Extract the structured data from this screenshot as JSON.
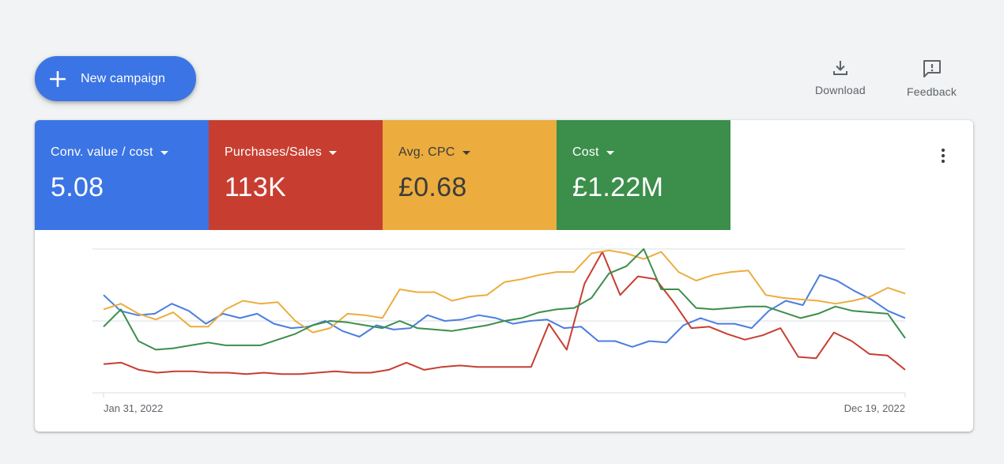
{
  "toolbar": {
    "new_campaign_label": "New campaign",
    "download_label": "Download",
    "feedback_label": "Feedback"
  },
  "metrics": [
    {
      "label": "Conv. value / cost",
      "value": "5.08",
      "color": "#3b74e4"
    },
    {
      "label": "Purchases/Sales",
      "value": "113K",
      "color": "#c73e31"
    },
    {
      "label": "Avg. CPC",
      "value": "£0.68",
      "color": "#ecad3e"
    },
    {
      "label": "Cost",
      "value": "£1.22M",
      "color": "#3c8e4b"
    }
  ],
  "icons": {
    "new_campaign": "plus-icon",
    "download": "download-icon",
    "feedback": "feedback-icon",
    "menu": "more-vert-icon"
  },
  "chart_data": {
    "type": "line",
    "x_start": "Jan 31, 2022",
    "x_end": "Dec 19, 2022",
    "x_tick_labels": [
      "Jan 31, 2022",
      "Dec 19, 2022"
    ],
    "grid": true,
    "series": [
      {
        "name": "Conv. value / cost",
        "color": "#4a7ee0",
        "values": [
          68,
          57,
          54,
          55,
          62,
          57,
          48,
          55,
          52,
          55,
          48,
          45,
          46,
          50,
          43,
          39,
          47,
          44,
          45,
          54,
          50,
          51,
          54,
          52,
          48,
          50,
          51,
          45,
          46,
          36,
          36,
          32,
          36,
          35,
          47,
          52,
          48,
          48,
          45,
          57,
          64,
          61,
          82,
          78,
          71,
          65,
          57,
          52
        ]
      },
      {
        "name": "Purchases/Sales",
        "color": "#c73e31",
        "values": [
          20,
          21,
          16,
          14,
          15,
          15,
          14,
          14,
          13,
          14,
          13,
          13,
          14,
          15,
          14,
          14,
          16,
          21,
          16,
          18,
          19,
          18,
          18,
          18,
          18,
          48,
          30,
          76,
          98,
          68,
          81,
          79,
          63,
          45,
          46,
          41,
          37,
          40,
          45,
          25,
          24,
          42,
          36,
          27,
          26,
          16
        ]
      },
      {
        "name": "Avg. CPC",
        "color": "#ecad3e",
        "values": [
          58,
          62,
          55,
          51,
          56,
          46,
          46,
          58,
          64,
          62,
          63,
          50,
          42,
          45,
          55,
          54,
          52,
          72,
          70,
          70,
          64,
          67,
          68,
          77,
          79,
          82,
          84,
          84,
          97,
          99,
          97,
          93,
          98,
          84,
          78,
          82,
          84,
          85,
          68,
          66,
          65,
          64,
          62,
          64,
          67,
          73,
          69
        ]
      },
      {
        "name": "Cost",
        "color": "#3c8e4b",
        "values": [
          46,
          58,
          36,
          30,
          31,
          33,
          35,
          33,
          33,
          33,
          37,
          41,
          47,
          50,
          49,
          47,
          45,
          50,
          45,
          44,
          43,
          45,
          47,
          50,
          52,
          56,
          58,
          59,
          66,
          83,
          88,
          100,
          72,
          72,
          59,
          58,
          59,
          60,
          60,
          56,
          52,
          55,
          60,
          57,
          56,
          55,
          38
        ]
      }
    ],
    "ylim": [
      0,
      100
    ]
  }
}
